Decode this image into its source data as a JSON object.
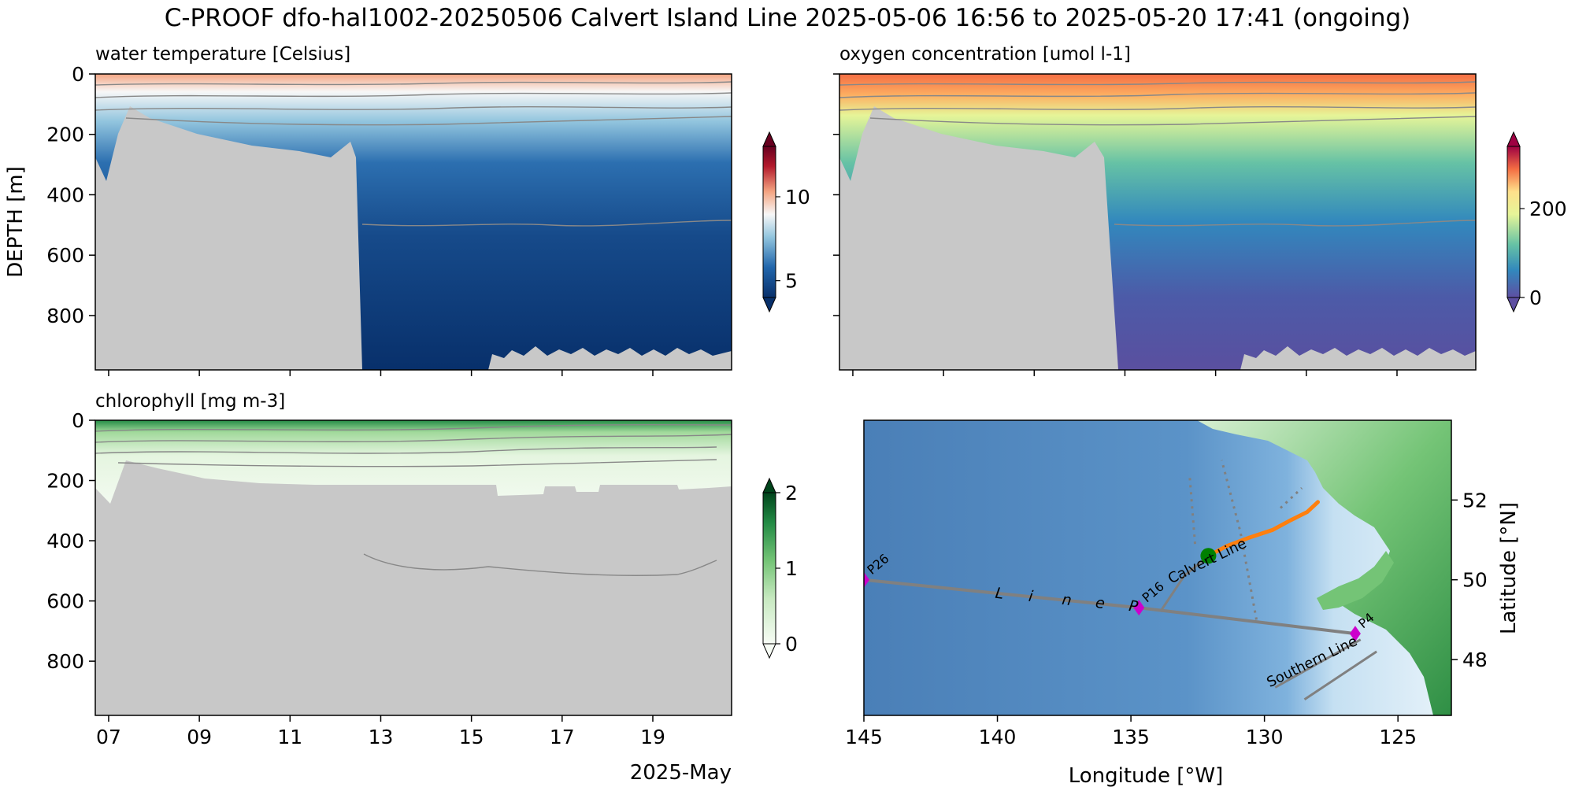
{
  "figure": {
    "title": "C-PROOF dfo-hal1002-20250506   Calvert Island Line   2025-05-06 16:56 to 2025-05-20 17:41 (ongoing)"
  },
  "chart_data": [
    {
      "type": "heatmap",
      "title": "water temperature [Celsius]",
      "ylabel": "DEPTH [m]",
      "x": [
        "07",
        "09",
        "11",
        "13",
        "15",
        "17",
        "19"
      ],
      "x_date_range": [
        "2025-05-06 16:56",
        "2025-05-20 17:41"
      ],
      "y_ticks": [
        0,
        200,
        400,
        600,
        800
      ],
      "ylim": [
        980,
        0
      ],
      "colorbar": {
        "ticks": [
          5,
          10
        ],
        "range": [
          4,
          13
        ],
        "colormap": "RdBu_r",
        "colors": [
          "#08306b",
          "#2166ac",
          "#92c5de",
          "#f7f7f7",
          "#f4a582",
          "#b2182b",
          "#67001f"
        ]
      },
      "annotations": "grey contour lines; grey fill marks seafloor / no data"
    },
    {
      "type": "heatmap",
      "title": "oxygen concentration [umol l-1]",
      "x": [
        "07",
        "09",
        "11",
        "13",
        "15",
        "17",
        "19"
      ],
      "y_ticks": [
        0,
        200,
        400,
        600,
        800
      ],
      "ylim": [
        980,
        0
      ],
      "colorbar": {
        "ticks": [
          0,
          200
        ],
        "range": [
          0,
          340
        ],
        "colormap": "Spectral_r",
        "colors": [
          "#5e4fa2",
          "#3288bd",
          "#66c2a5",
          "#e6f598",
          "#fee08b",
          "#f46d43",
          "#9e0142"
        ]
      }
    },
    {
      "type": "heatmap",
      "title": "chlorophyll [mg m-3]",
      "x": [
        "07",
        "09",
        "11",
        "13",
        "15",
        "17",
        "19"
      ],
      "xlabel": "2025-May",
      "y_ticks": [
        0,
        200,
        400,
        600,
        800
      ],
      "ylim": [
        980,
        0
      ],
      "colorbar": {
        "ticks": [
          0,
          1,
          2
        ],
        "range": [
          0,
          2
        ],
        "colormap": "Greens",
        "colors": [
          "#f7fcf5",
          "#c7e9c0",
          "#74c476",
          "#238b45",
          "#00441b"
        ]
      }
    },
    {
      "type": "map",
      "xlabel": "Longitude [°W]",
      "ylabel": "Latitude [°N]",
      "x_ticks": [
        145,
        140,
        135,
        130,
        125
      ],
      "y_ticks": [
        52,
        50,
        48
      ],
      "xlim": [
        145,
        123
      ],
      "ylim": [
        46.6,
        54
      ],
      "labels": {
        "calvert": "Calvert Line",
        "linep": [
          "L",
          "i",
          "n",
          "e",
          "P"
        ],
        "southern": "Southern Line"
      },
      "stations": [
        {
          "name": "P26",
          "lon": 145.0,
          "lat": 50.0
        },
        {
          "name": "P16",
          "lon": 134.7,
          "lat": 49.3
        },
        {
          "name": "P4",
          "lon": 126.6,
          "lat": 48.65
        }
      ],
      "glider_track": [
        [
          132.1,
          50.6
        ],
        [
          131.4,
          50.85
        ],
        [
          130.6,
          51.05
        ],
        [
          129.7,
          51.25
        ],
        [
          129.0,
          51.5
        ],
        [
          128.4,
          51.7
        ],
        [
          128.0,
          51.95
        ]
      ],
      "glider_position": [
        132.1,
        50.6
      ],
      "colors": {
        "track": "#ff7f0e",
        "position": "#008000",
        "stations": "#cc00cc",
        "past_tracks": "#808080"
      }
    }
  ]
}
